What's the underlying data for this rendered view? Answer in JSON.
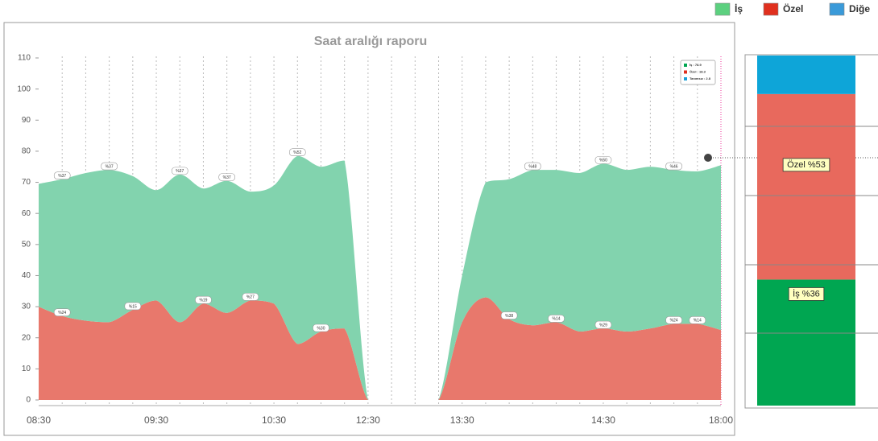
{
  "chart_data": [
    {
      "type": "stacked-area",
      "title": "Saat aralığı raporu",
      "categories": [
        "08:30",
        null,
        null,
        null,
        null,
        "09:30",
        null,
        null,
        null,
        null,
        "10:30",
        null,
        null,
        null,
        "12:30",
        null,
        null,
        null,
        "13:30",
        null,
        null,
        null,
        null,
        null,
        "14:30",
        null,
        null,
        null,
        null,
        "18:00"
      ],
      "series": [
        {
          "name": "Özel",
          "color": "#e8786c",
          "values": [
            30,
            27,
            25.5,
            25,
            29,
            32,
            25,
            31,
            28,
            32,
            31,
            18,
            22,
            23,
            0,
            0,
            0,
            0,
            25,
            33,
            26,
            24,
            25,
            22,
            23,
            22,
            23,
            24.5,
            24.5,
            22.5
          ],
          "value_labels": [
            null,
            "%24",
            null,
            null,
            "%15",
            null,
            null,
            "%19",
            null,
            "%27",
            null,
            null,
            "%30",
            null,
            null,
            null,
            null,
            null,
            null,
            null,
            "%38",
            null,
            "%14",
            null,
            "%29",
            null,
            null,
            "%24",
            "%14",
            null
          ]
        },
        {
          "name": "İş",
          "color": "#82d3ae",
          "values": [
            39.5,
            44,
            47.5,
            49,
            43,
            35.5,
            47.5,
            37,
            42.5,
            35,
            38,
            60.5,
            53,
            54,
            0,
            0,
            0,
            0,
            15,
            37,
            45,
            50,
            49,
            51,
            53,
            52,
            52,
            49.5,
            49,
            53
          ],
          "value_labels": [
            null,
            "%37",
            null,
            "%37",
            null,
            null,
            "%37",
            null,
            "%37",
            null,
            null,
            "%52",
            null,
            null,
            null,
            null,
            null,
            null,
            null,
            null,
            null,
            "%48",
            null,
            null,
            "%50",
            null,
            null,
            "%46",
            null,
            null
          ]
        }
      ],
      "inner_legend": [
        {
          "label": "İş : 78.9",
          "color": "#00a651"
        },
        {
          "label": "Özel : 18.3",
          "color": "#e0301e"
        },
        {
          "label": "Tanımsız : 2.8",
          "color": "#1a9fd6"
        }
      ],
      "ylim": [
        0,
        110
      ],
      "yticks": [
        0,
        10,
        20,
        30,
        40,
        50,
        60,
        70,
        80,
        90,
        100,
        110
      ],
      "grid": "x"
    },
    {
      "type": "stacked-bar",
      "series": [
        {
          "name": "İş",
          "color": "#00a651",
          "swatch": "#5cd07f",
          "values": [
            36
          ],
          "value_labels": [
            "İş %36"
          ]
        },
        {
          "name": "Özel",
          "color": "#e8695d",
          "swatch": "#e0301e",
          "values": [
            53
          ],
          "value_labels": [
            "Özel %53"
          ]
        },
        {
          "name": "Diğe",
          "color": "#0ea5d8",
          "swatch": "#3a9ad9",
          "values": [
            11
          ]
        }
      ],
      "ylim": [
        0,
        100
      ]
    }
  ]
}
